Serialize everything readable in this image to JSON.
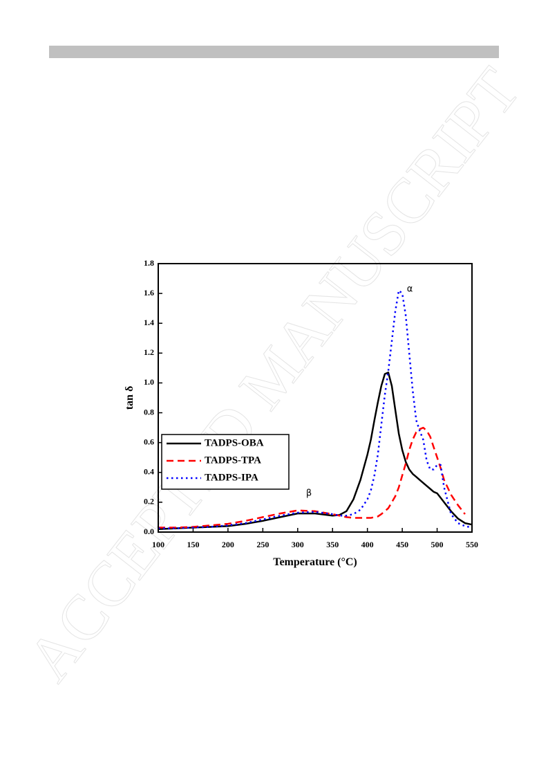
{
  "watermark": "ACCEPTED MANUSCRIPT",
  "chart_data": {
    "type": "line",
    "xlabel": "Temperature (°C)",
    "ylabel": "tan δ",
    "xlim": [
      100,
      550
    ],
    "ylim": [
      0,
      1.8
    ],
    "xticks": [
      100,
      150,
      200,
      250,
      300,
      350,
      400,
      450,
      500,
      550
    ],
    "yticks": [
      {
        "value": 0,
        "label": "0.0"
      },
      0.2,
      0.4,
      0.6,
      0.8,
      {
        "value": 1,
        "label": "1.0"
      },
      1.2,
      1.4,
      1.6,
      1.8
    ],
    "legend": "lower left",
    "x": [
      100,
      125,
      150,
      175,
      200,
      225,
      250,
      275,
      300,
      325,
      350,
      360,
      370,
      380,
      390,
      400,
      405,
      410,
      415,
      420,
      425,
      430,
      435,
      440,
      445,
      450,
      455,
      460,
      465,
      470,
      475,
      480,
      485,
      490,
      495,
      500,
      505,
      510,
      520,
      530,
      540,
      550
    ],
    "series": [
      {
        "name": "TADPS-OBA",
        "color": "#000000",
        "style": "solid",
        "values": [
          0.02,
          0.025,
          0.03,
          0.035,
          0.04,
          0.055,
          0.075,
          0.1,
          0.125,
          0.125,
          0.11,
          0.115,
          0.14,
          0.22,
          0.35,
          0.52,
          0.62,
          0.75,
          0.87,
          0.98,
          1.06,
          1.07,
          0.98,
          0.82,
          0.66,
          0.55,
          0.47,
          0.42,
          0.39,
          0.37,
          0.35,
          0.33,
          0.31,
          0.29,
          0.27,
          0.26,
          0.23,
          0.2,
          0.14,
          0.09,
          0.06,
          0.05
        ]
      },
      {
        "name": "TADPS-TPA",
        "color": "#ff0000",
        "style": "dashed",
        "values": [
          0.03,
          0.03,
          0.035,
          0.045,
          0.055,
          0.075,
          0.1,
          0.125,
          0.145,
          0.14,
          0.12,
          0.11,
          0.1,
          0.095,
          0.095,
          0.095,
          0.095,
          0.1,
          0.105,
          0.12,
          0.14,
          0.16,
          0.2,
          0.24,
          0.3,
          0.38,
          0.46,
          0.55,
          0.62,
          0.67,
          0.69,
          0.7,
          0.68,
          0.64,
          0.57,
          0.5,
          0.43,
          0.35,
          0.25,
          0.18,
          0.12,
          null
        ]
      },
      {
        "name": "TADPS-IPA",
        "color": "#0000ff",
        "style": "dotted",
        "values": [
          0.025,
          0.025,
          0.03,
          0.035,
          0.045,
          0.06,
          0.085,
          0.11,
          0.13,
          0.135,
          0.12,
          0.11,
          0.11,
          0.12,
          0.15,
          0.22,
          0.28,
          0.38,
          0.52,
          0.72,
          0.92,
          1.08,
          1.28,
          1.48,
          1.62,
          1.6,
          1.45,
          1.2,
          0.95,
          0.75,
          0.68,
          0.62,
          0.48,
          0.42,
          0.42,
          0.45,
          0.45,
          0.3,
          0.12,
          0.06,
          0.04,
          0.03
        ]
      }
    ],
    "annotations": [
      {
        "text": "α"
      },
      {
        "text": "β"
      }
    ]
  }
}
